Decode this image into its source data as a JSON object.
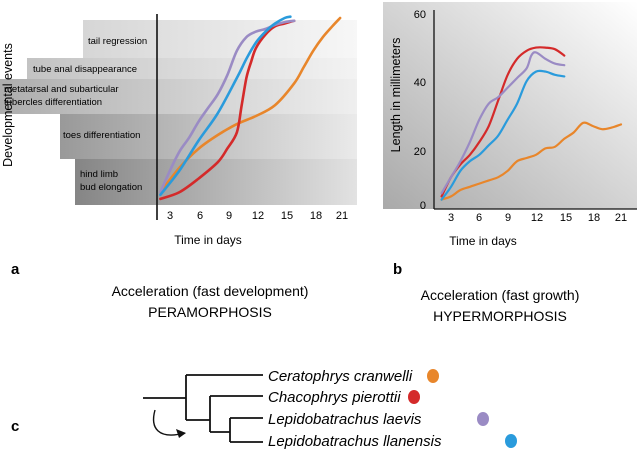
{
  "panels": {
    "a": {
      "label": "a",
      "y_axis_label": "Developmental events",
      "x_axis_label": "Time in days",
      "x_ticks": [
        "3",
        "6",
        "9",
        "12",
        "15",
        "18",
        "21"
      ],
      "events": [
        "tail regression",
        "tube anal disappearance",
        "metatarsal and subarticular",
        "tubercles differentiation",
        "toes differentiation",
        "hind limb",
        "bud elongation"
      ],
      "caption_line1": "Acceleration (fast development)",
      "caption_line2": "PERAMORPHOSIS"
    },
    "b": {
      "label": "b",
      "y_axis_label": "Length  in millimeters",
      "x_axis_label": "Time in days",
      "x_ticks": [
        "3",
        "6",
        "9",
        "12",
        "15",
        "18",
        "21"
      ],
      "y_ticks": [
        "0",
        "20",
        "40",
        "60"
      ],
      "caption_line1": "Acceleration (fast growth)",
      "caption_line2": "HYPERMORPHOSIS"
    },
    "c": {
      "label": "c",
      "species": [
        {
          "name": "Ceratophrys cranwelli",
          "color": "#e8862b"
        },
        {
          "name": "Chacophrys pierottii",
          "color": "#d42a2a"
        },
        {
          "name": "Lepidobatrachus laevis",
          "color": "#9a8bc4"
        },
        {
          "name": "Lepidobatrachus llanensis",
          "color": "#2a9bdc"
        }
      ]
    }
  },
  "colors": {
    "orange": "#e8862b",
    "red": "#d42a2a",
    "purple": "#9a8bc4",
    "blue": "#2a9bdc"
  },
  "chart_data": [
    {
      "type": "line",
      "title": "",
      "xlabel": "Time in days",
      "ylabel": "Developmental events",
      "xlim": [
        1,
        22
      ],
      "series": [
        {
          "name": "Ceratophrys cranwelli",
          "color": "#e8862b",
          "x": [
            2,
            4,
            6,
            8,
            10,
            12,
            14,
            16,
            17,
            18,
            19,
            20,
            20.8
          ],
          "y": [
            0.4,
            1.3,
            2.0,
            2.5,
            2.9,
            3.2,
            3.6,
            4.4,
            5.0,
            5.6,
            6.1,
            6.5,
            6.8
          ]
        },
        {
          "name": "Chacophrys pierottii",
          "color": "#d42a2a",
          "x": [
            2,
            4,
            6,
            8,
            9,
            10,
            10.5,
            11,
            11.5,
            12,
            13,
            14,
            15,
            16
          ],
          "y": [
            0.15,
            0.4,
            0.9,
            1.5,
            2.0,
            2.6,
            3.6,
            4.6,
            5.2,
            5.7,
            6.2,
            6.5,
            6.6,
            6.7
          ]
        },
        {
          "name": "Lepidobatrachus laevis",
          "color": "#9a8bc4",
          "x": [
            2,
            3,
            4,
            5,
            6,
            7,
            8,
            9,
            10,
            11,
            12,
            13,
            14,
            15,
            16
          ],
          "y": [
            0.4,
            1.2,
            1.9,
            2.4,
            3.0,
            3.5,
            4.0,
            4.7,
            5.6,
            6.1,
            6.3,
            6.4,
            6.55,
            6.65,
            6.7
          ]
        },
        {
          "name": "Lepidobatrachus llanensis",
          "color": "#2a9bdc",
          "x": [
            2,
            4,
            6,
            8,
            10,
            11,
            12,
            13,
            14,
            15,
            15.6
          ],
          "y": [
            0.3,
            1.2,
            2.3,
            3.3,
            4.6,
            5.3,
            5.9,
            6.3,
            6.6,
            6.8,
            6.85
          ]
        }
      ]
    },
    {
      "type": "line",
      "title": "",
      "xlabel": "Time in days",
      "ylabel": "Length in millimeters",
      "xlim": [
        1,
        22
      ],
      "ylim": [
        0,
        62
      ],
      "series": [
        {
          "name": "Ceratophrys cranwelli",
          "color": "#e8862b",
          "x": [
            2,
            3,
            4,
            5,
            6,
            7,
            8,
            9,
            10,
            11,
            12,
            13,
            14,
            15,
            16,
            17,
            18,
            19,
            20,
            21
          ],
          "y": [
            2,
            3,
            5,
            6,
            7,
            8,
            9,
            11,
            14,
            15,
            16,
            18,
            18.5,
            21,
            23,
            26,
            25,
            24,
            24.5,
            25.5
          ]
        },
        {
          "name": "Chacophrys pierottii",
          "color": "#d42a2a",
          "x": [
            2,
            3,
            4,
            5,
            6,
            7,
            8,
            9,
            10,
            11,
            12,
            13,
            14,
            15
          ],
          "y": [
            3,
            9,
            13,
            16,
            20,
            25,
            33,
            41,
            46,
            48.5,
            49.5,
            49.5,
            49,
            47
          ]
        },
        {
          "name": "Lepidobatrachus laevis",
          "color": "#9a8bc4",
          "x": [
            2,
            3,
            4,
            5,
            6,
            7,
            8,
            9,
            10,
            11,
            11.5,
            12,
            13,
            14,
            15
          ],
          "y": [
            4,
            9,
            14,
            20,
            27,
            32,
            34,
            37,
            40,
            43,
            47,
            48,
            46,
            44.5,
            44
          ]
        },
        {
          "name": "Lepidobatrachus llanensis",
          "color": "#2a9bdc",
          "x": [
            2,
            3,
            4,
            5,
            6,
            7,
            8,
            9,
            10,
            11,
            12,
            13,
            14,
            15
          ],
          "y": [
            2,
            6,
            11,
            14,
            16,
            19,
            22,
            27,
            32,
            39,
            42,
            42,
            41,
            40.5
          ]
        }
      ]
    }
  ]
}
